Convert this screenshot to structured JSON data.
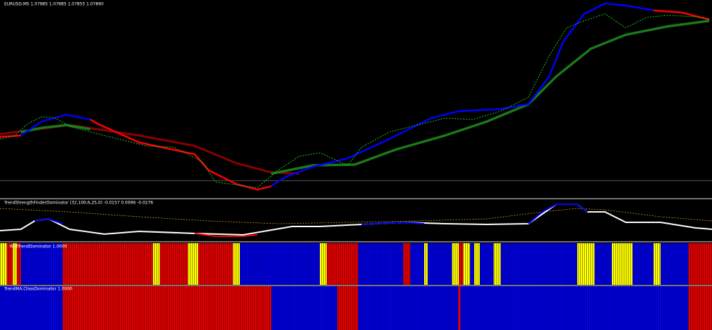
{
  "main_panel": {
    "label": "EURUSD,M5  1.07885 1.07885 1.07855 1.07860"
  },
  "indicator_panels": [
    {
      "label": "TrendStrengthFinderDominator (32,100,6,25,0) -0.0157 0.0096 -0.0276"
    },
    {
      "label": "RedTrendDominator 1.0000"
    },
    {
      "label": "TrendMA.ClossDominator 1.0000"
    }
  ]
}
